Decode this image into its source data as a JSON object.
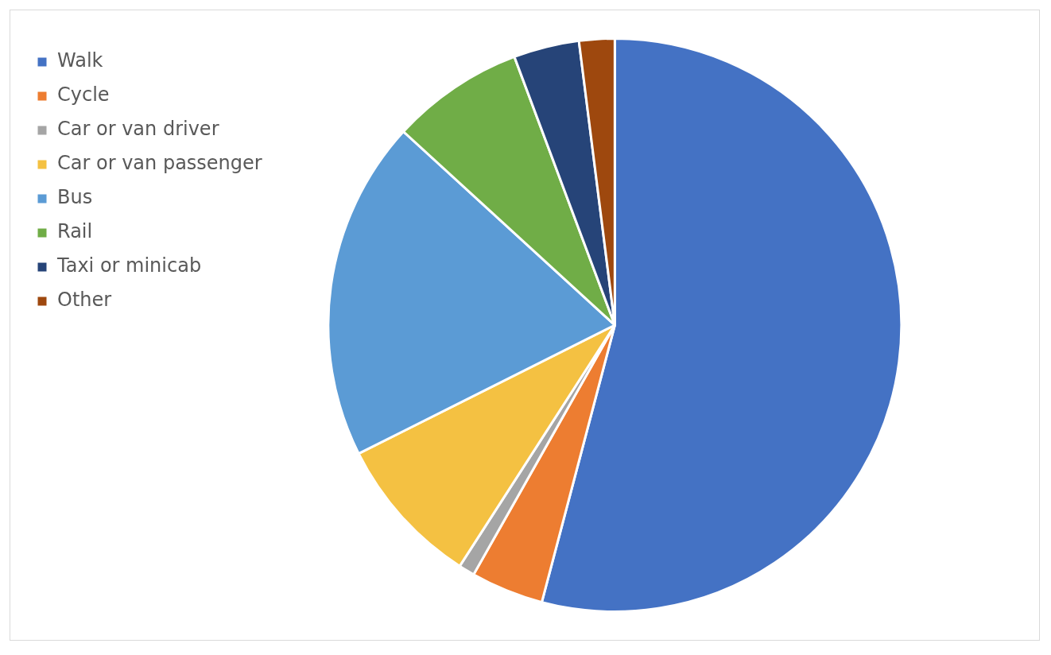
{
  "chart_data": {
    "type": "pie",
    "categories": [
      "Walk",
      "Cycle",
      "Car or van driver",
      "Car or van passenger",
      "Bus",
      "Rail",
      "Taxi or minicab",
      "Other"
    ],
    "values": [
      54.1,
      4.1,
      0.9,
      8.5,
      19.2,
      7.5,
      3.7,
      2.0
    ],
    "colors": [
      "#4472c4",
      "#ed7d31",
      "#a5a5a5",
      "#f4c142",
      "#5b9bd5",
      "#70ad47",
      "#264478",
      "#9e480e"
    ],
    "legend": "left"
  }
}
